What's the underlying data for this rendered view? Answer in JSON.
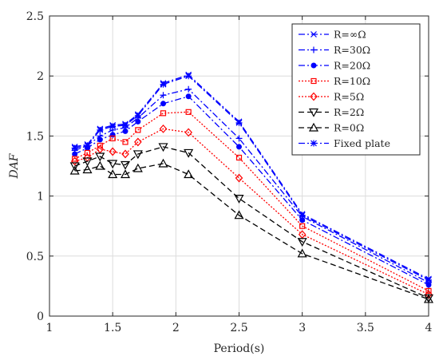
{
  "chart_data": {
    "type": "line",
    "title": "",
    "xlabel": "Period(s)",
    "ylabel": "DAF",
    "xlim": [
      1,
      4
    ],
    "ylim": [
      0,
      2.5
    ],
    "xticks": [
      1,
      1.5,
      2,
      2.5,
      3,
      3.5,
      4
    ],
    "yticks": [
      0,
      0.5,
      1,
      1.5,
      2,
      2.5
    ],
    "xtick_labels": [
      "1",
      "1.5",
      "2",
      "2.5",
      "3",
      "3.5",
      "4"
    ],
    "ytick_labels": [
      "0",
      "0.5",
      "1",
      "1.5",
      "2",
      "2.5"
    ],
    "grid": true,
    "legend_position": "top-right",
    "x": [
      1.2,
      1.3,
      1.4,
      1.5,
      1.6,
      1.7,
      1.9,
      2.1,
      2.5,
      3,
      4
    ],
    "series": [
      {
        "name": "R=∞Ω",
        "color": "#0000ff",
        "dash": "dashdot",
        "marker": "x",
        "values": [
          1.41,
          1.43,
          1.56,
          1.59,
          1.6,
          1.68,
          1.94,
          2.01,
          1.62,
          0.85,
          0.31
        ]
      },
      {
        "name": "R=30Ω",
        "color": "#0000ff",
        "dash": "dashdot",
        "marker": "plus",
        "values": [
          1.38,
          1.42,
          1.5,
          1.55,
          1.57,
          1.65,
          1.84,
          1.89,
          1.48,
          0.83,
          0.28
        ]
      },
      {
        "name": "R=20Ω",
        "color": "#0000ff",
        "dash": "dashdot",
        "marker": "dot",
        "values": [
          1.35,
          1.4,
          1.47,
          1.51,
          1.54,
          1.62,
          1.77,
          1.83,
          1.41,
          0.8,
          0.26
        ]
      },
      {
        "name": "R=10Ω",
        "color": "#ff0000",
        "dash": "dotted",
        "marker": "square",
        "values": [
          1.31,
          1.36,
          1.42,
          1.48,
          1.45,
          1.55,
          1.69,
          1.7,
          1.32,
          0.75,
          0.21
        ]
      },
      {
        "name": "R=5Ω",
        "color": "#ff0000",
        "dash": "dotted",
        "marker": "diamond",
        "values": [
          1.29,
          1.32,
          1.39,
          1.37,
          1.35,
          1.45,
          1.56,
          1.53,
          1.15,
          0.68,
          0.18
        ]
      },
      {
        "name": "R=2Ω",
        "color": "#000000",
        "dash": "dashed",
        "marker": "triangle-down",
        "values": [
          1.25,
          1.29,
          1.33,
          1.27,
          1.26,
          1.35,
          1.41,
          1.36,
          0.98,
          0.62,
          0.15
        ]
      },
      {
        "name": "R=0Ω",
        "color": "#000000",
        "dash": "dashed",
        "marker": "triangle-up",
        "values": [
          1.21,
          1.22,
          1.25,
          1.18,
          1.18,
          1.23,
          1.27,
          1.18,
          0.84,
          0.52,
          0.14
        ]
      },
      {
        "name": "Fixed plate",
        "color": "#0000ff",
        "dash": "dashdot",
        "marker": "asterisk",
        "values": [
          1.4,
          1.42,
          1.55,
          1.58,
          1.59,
          1.67,
          1.93,
          2.0,
          1.61,
          0.84,
          0.3
        ]
      }
    ]
  }
}
